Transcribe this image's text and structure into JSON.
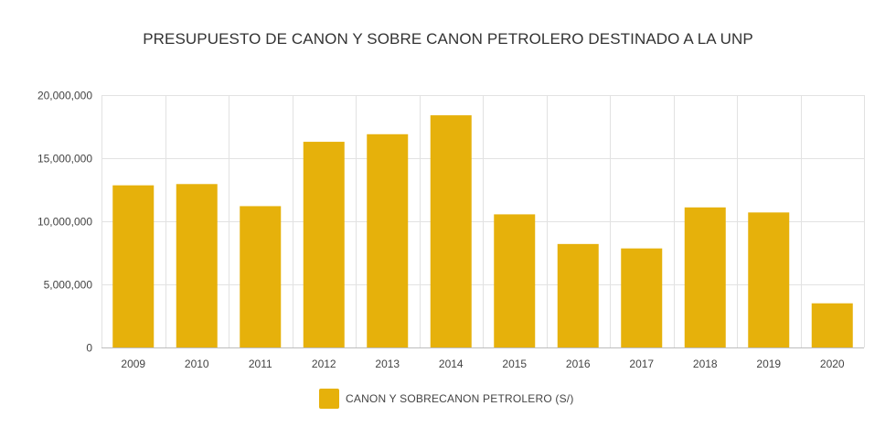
{
  "chart_data": {
    "type": "bar",
    "title": "PRESUPUESTO DE CANON Y SOBRE CANON PETROLERO DESTINADO A LA UNP",
    "categories": [
      "2009",
      "2010",
      "2011",
      "2012",
      "2013",
      "2014",
      "2015",
      "2016",
      "2017",
      "2018",
      "2019",
      "2020"
    ],
    "series": [
      {
        "name": "CANON Y SOBRECANON PETROLERO (S/)",
        "color": "#E6B10B",
        "values": [
          12850000,
          12950000,
          11200000,
          16300000,
          16900000,
          18400000,
          10550000,
          8200000,
          7850000,
          11100000,
          10700000,
          3500000
        ]
      }
    ],
    "ylim": [
      0,
      20000000
    ],
    "yticks": [
      0,
      5000000,
      10000000,
      15000000,
      20000000
    ],
    "ytick_labels": [
      "0",
      "5,000,000",
      "10,000,000",
      "15,000,000",
      "20,000,000"
    ],
    "grid": true,
    "legend_position": "bottom",
    "xlabel": "",
    "ylabel": ""
  }
}
